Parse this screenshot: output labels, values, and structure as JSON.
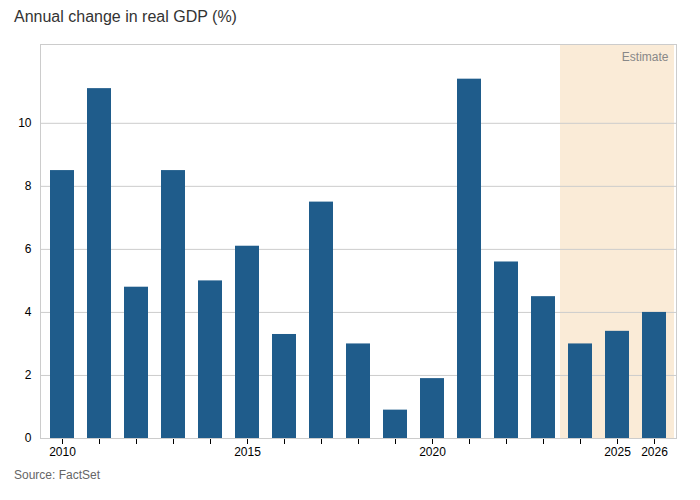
{
  "chart_data": {
    "type": "bar",
    "title": "Annual change in real GDP (%)",
    "source": "Source: FactSet",
    "categories": [
      "2010",
      null,
      null,
      null,
      null,
      "2015",
      null,
      null,
      null,
      null,
      "2020",
      null,
      null,
      null,
      null,
      "2025",
      "2026"
    ],
    "values": [
      8.5,
      11.1,
      4.8,
      8.5,
      5.0,
      6.1,
      3.3,
      7.5,
      3.0,
      0.9,
      1.9,
      11.4,
      5.6,
      4.5,
      3.0,
      3.4,
      4.0
    ],
    "color": "#1f5c8b",
    "ylim": [
      0,
      12.5
    ],
    "yticks": [
      0,
      2,
      4,
      6,
      8,
      10
    ],
    "grid": true,
    "annotations": [
      {
        "text": "Estimate",
        "start": 14,
        "end": 16,
        "color": "#faebd7"
      }
    ]
  }
}
